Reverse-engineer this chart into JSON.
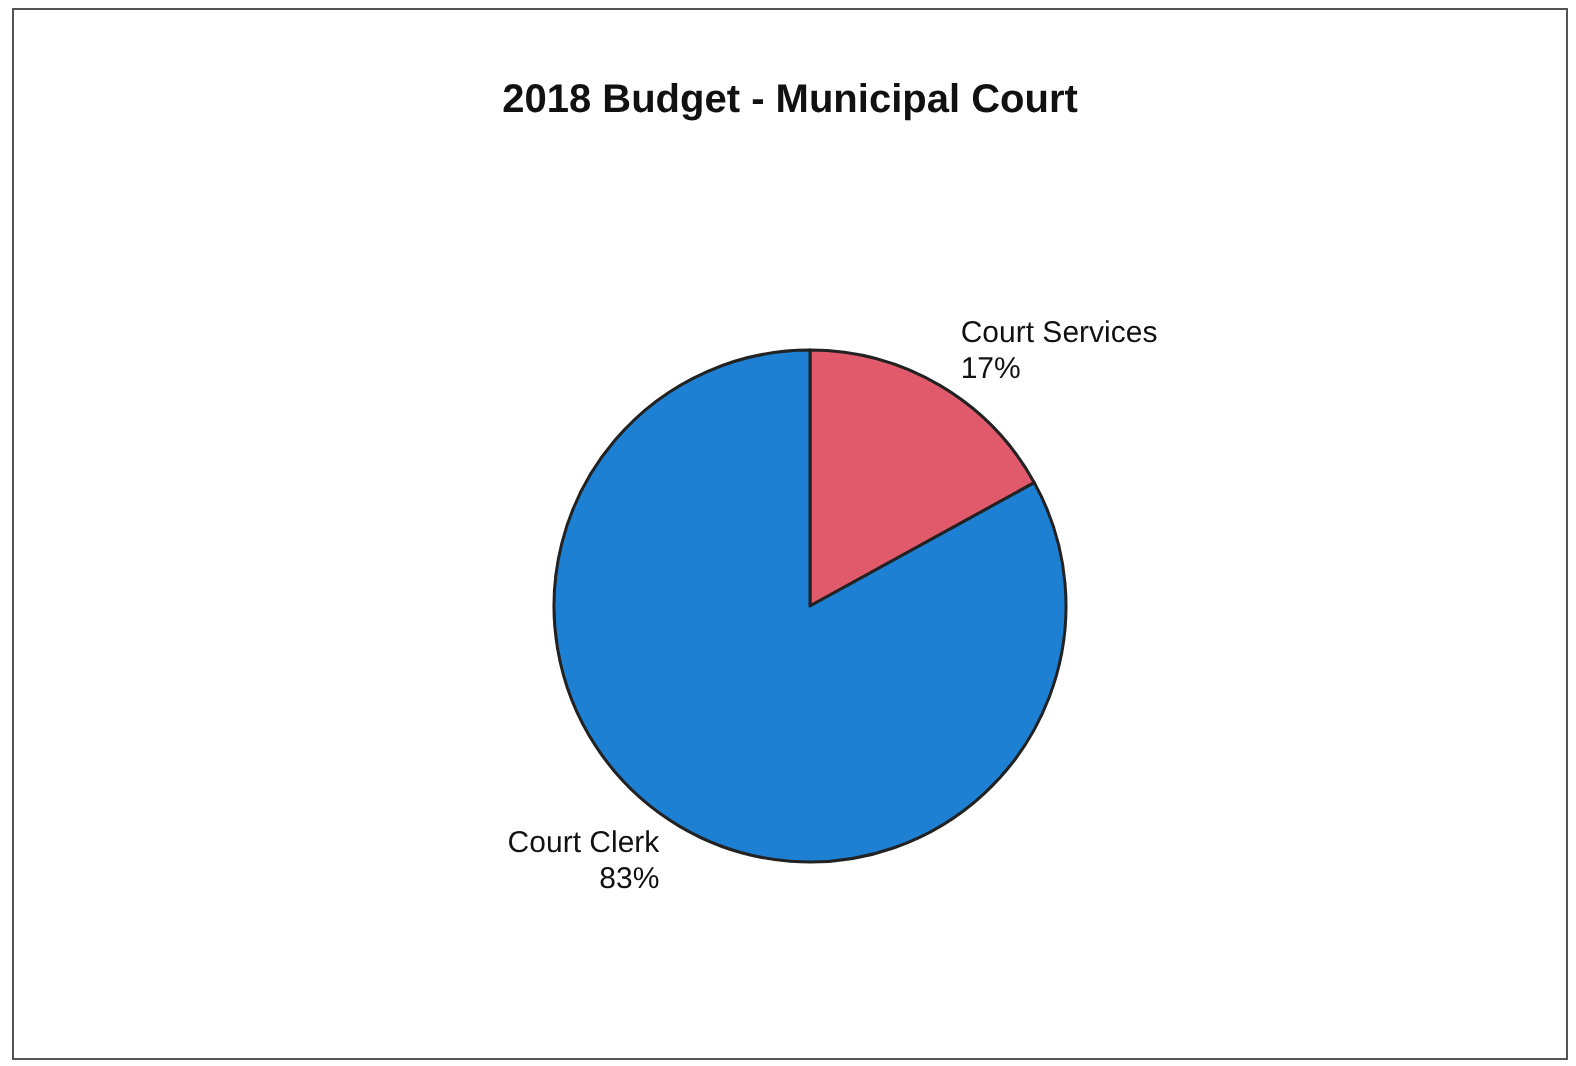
{
  "chart_data": {
    "type": "pie",
    "title": "2018 Budget - Municipal Court",
    "categories": [
      "Court Services",
      "Court Clerk"
    ],
    "values": [
      17,
      83
    ],
    "colors": [
      "#e05a6b",
      "#1d80d2"
    ],
    "value_labels": [
      "17%",
      "83%"
    ]
  }
}
